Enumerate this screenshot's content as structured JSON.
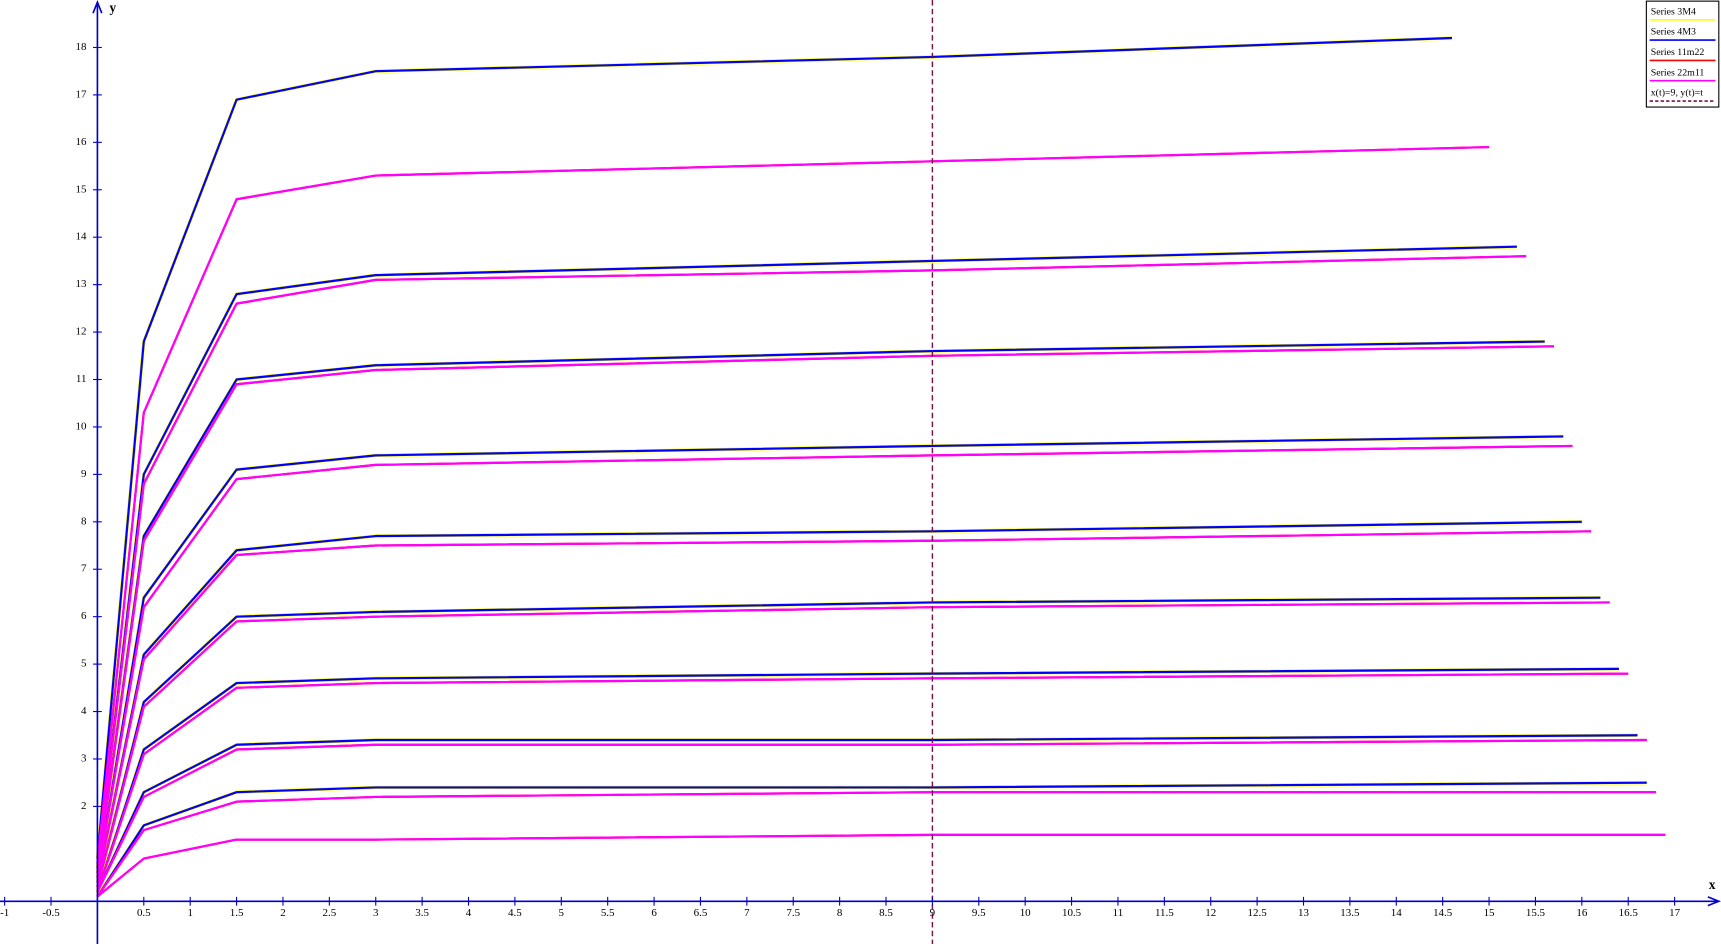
{
  "chart_data": {
    "type": "line",
    "xlabel": "x",
    "ylabel": "y",
    "xlim": [
      -1.05,
      17.5
    ],
    "ylim": [
      -0.9,
      19
    ],
    "xticks": [
      -1,
      -0.5,
      0.5,
      1,
      1.5,
      2,
      2.5,
      3,
      3.5,
      4,
      4.5,
      5,
      5.5,
      6,
      6.5,
      7,
      7.5,
      8,
      8.5,
      9,
      9.5,
      10,
      10.5,
      11,
      11.5,
      12,
      12.5,
      13,
      13.5,
      14,
      14.5,
      15,
      15.5,
      16,
      16.5,
      17
    ],
    "yticks": [
      2,
      3,
      4,
      5,
      6,
      7,
      8,
      9,
      10,
      11,
      12,
      13,
      14,
      15,
      16,
      17,
      18
    ],
    "legend": "upper right",
    "series": [
      {
        "name": "Series 3M4",
        "color": "#ffff00",
        "curves": [
          {
            "x": [
              0,
              0.5,
              1.5,
              3,
              9,
              14.6
            ],
            "y": [
              0.9,
              11.8,
              16.9,
              17.5,
              17.8,
              18.2
            ]
          },
          {
            "x": [
              0,
              0.5,
              1.5,
              3,
              9,
              15.3
            ],
            "y": [
              0.7,
              9.0,
              12.8,
              13.2,
              13.5,
              13.8
            ]
          },
          {
            "x": [
              0,
              0.5,
              1.5,
              3,
              9,
              15.6
            ],
            "y": [
              0.6,
              7.7,
              11.0,
              11.3,
              11.6,
              11.8
            ]
          },
          {
            "x": [
              0,
              0.5,
              1.5,
              3,
              9,
              15.8
            ],
            "y": [
              0.5,
              6.4,
              9.1,
              9.4,
              9.6,
              9.8
            ]
          },
          {
            "x": [
              0,
              0.5,
              1.5,
              3,
              9,
              16.0
            ],
            "y": [
              0.4,
              5.2,
              7.4,
              7.7,
              7.8,
              8.0
            ]
          },
          {
            "x": [
              0,
              0.5,
              1.5,
              3,
              9,
              16.2
            ],
            "y": [
              0.3,
              4.2,
              6.0,
              6.1,
              6.3,
              6.4
            ]
          },
          {
            "x": [
              0,
              0.5,
              1.5,
              3,
              9,
              16.4
            ],
            "y": [
              0.2,
              3.2,
              4.6,
              4.7,
              4.8,
              4.9
            ]
          },
          {
            "x": [
              0,
              0.5,
              1.5,
              3,
              9,
              16.6
            ],
            "y": [
              0.2,
              2.3,
              3.3,
              3.4,
              3.4,
              3.5
            ]
          },
          {
            "x": [
              0,
              0.5,
              1.5,
              3,
              9,
              16.7
            ],
            "y": [
              0.1,
              1.6,
              2.3,
              2.4,
              2.4,
              2.5
            ]
          }
        ]
      },
      {
        "name": "Series 4M3",
        "color": "#0000ff",
        "curves": [
          {
            "x": [
              0,
              0.5,
              1.5,
              3,
              9,
              14.6
            ],
            "y": [
              0.9,
              11.8,
              16.9,
              17.5,
              17.8,
              18.2
            ]
          },
          {
            "x": [
              0,
              0.5,
              1.5,
              3,
              9,
              15.3
            ],
            "y": [
              0.7,
              9.0,
              12.8,
              13.2,
              13.5,
              13.8
            ]
          },
          {
            "x": [
              0,
              0.5,
              1.5,
              3,
              9,
              15.6
            ],
            "y": [
              0.6,
              7.7,
              11.0,
              11.3,
              11.6,
              11.8
            ]
          },
          {
            "x": [
              0,
              0.5,
              1.5,
              3,
              9,
              15.8
            ],
            "y": [
              0.5,
              6.4,
              9.1,
              9.4,
              9.6,
              9.8
            ]
          },
          {
            "x": [
              0,
              0.5,
              1.5,
              3,
              9,
              16.0
            ],
            "y": [
              0.4,
              5.2,
              7.4,
              7.7,
              7.8,
              8.0
            ]
          },
          {
            "x": [
              0,
              0.5,
              1.5,
              3,
              9,
              16.2
            ],
            "y": [
              0.3,
              4.2,
              6.0,
              6.1,
              6.3,
              6.4
            ]
          },
          {
            "x": [
              0,
              0.5,
              1.5,
              3,
              9,
              16.4
            ],
            "y": [
              0.2,
              3.2,
              4.6,
              4.7,
              4.8,
              4.9
            ]
          },
          {
            "x": [
              0,
              0.5,
              1.5,
              3,
              9,
              16.6
            ],
            "y": [
              0.2,
              2.3,
              3.3,
              3.4,
              3.4,
              3.5
            ]
          },
          {
            "x": [
              0,
              0.5,
              1.5,
              3,
              9,
              16.7
            ],
            "y": [
              0.1,
              1.6,
              2.3,
              2.4,
              2.4,
              2.5
            ]
          }
        ]
      },
      {
        "name": "Series 11m22",
        "color": "#ff0000",
        "curves": [
          {
            "x": [
              0,
              0.5,
              1.5,
              3,
              9,
              15.0
            ],
            "y": [
              0.8,
              10.3,
              14.8,
              15.3,
              15.6,
              15.9
            ]
          },
          {
            "x": [
              0,
              0.5,
              1.5,
              3,
              9,
              15.4
            ],
            "y": [
              0.7,
              8.8,
              12.6,
              13.1,
              13.3,
              13.6
            ]
          },
          {
            "x": [
              0,
              0.5,
              1.5,
              3,
              9,
              15.7
            ],
            "y": [
              0.6,
              7.6,
              10.9,
              11.2,
              11.5,
              11.7
            ]
          },
          {
            "x": [
              0,
              0.5,
              1.5,
              3,
              9,
              15.9
            ],
            "y": [
              0.5,
              6.2,
              8.9,
              9.2,
              9.4,
              9.6
            ]
          },
          {
            "x": [
              0,
              0.5,
              1.5,
              3,
              9,
              16.1
            ],
            "y": [
              0.4,
              5.1,
              7.3,
              7.5,
              7.6,
              7.8
            ]
          },
          {
            "x": [
              0,
              0.5,
              1.5,
              3,
              9,
              16.3
            ],
            "y": [
              0.3,
              4.1,
              5.9,
              6.0,
              6.2,
              6.3
            ]
          },
          {
            "x": [
              0,
              0.5,
              1.5,
              3,
              9,
              16.5
            ],
            "y": [
              0.2,
              3.1,
              4.5,
              4.6,
              4.7,
              4.8
            ]
          },
          {
            "x": [
              0,
              0.5,
              1.5,
              3,
              9,
              16.7
            ],
            "y": [
              0.2,
              2.2,
              3.2,
              3.3,
              3.3,
              3.4
            ]
          },
          {
            "x": [
              0,
              0.5,
              1.5,
              3,
              9,
              16.8
            ],
            "y": [
              0.1,
              1.5,
              2.1,
              2.2,
              2.3,
              2.3
            ]
          },
          {
            "x": [
              0,
              0.5,
              1.5,
              3,
              9,
              16.9
            ],
            "y": [
              0.1,
              0.9,
              1.3,
              1.3,
              1.4,
              1.4
            ]
          }
        ]
      },
      {
        "name": "Series 22m11",
        "color": "#ff00ff",
        "curves": [
          {
            "x": [
              0,
              0.5,
              1.5,
              3,
              9,
              15.0
            ],
            "y": [
              0.8,
              10.3,
              14.8,
              15.3,
              15.6,
              15.9
            ]
          },
          {
            "x": [
              0,
              0.5,
              1.5,
              3,
              9,
              15.4
            ],
            "y": [
              0.7,
              8.8,
              12.6,
              13.1,
              13.3,
              13.6
            ]
          },
          {
            "x": [
              0,
              0.5,
              1.5,
              3,
              9,
              15.7
            ],
            "y": [
              0.6,
              7.6,
              10.9,
              11.2,
              11.5,
              11.7
            ]
          },
          {
            "x": [
              0,
              0.5,
              1.5,
              3,
              9,
              15.9
            ],
            "y": [
              0.5,
              6.2,
              8.9,
              9.2,
              9.4,
              9.6
            ]
          },
          {
            "x": [
              0,
              0.5,
              1.5,
              3,
              9,
              16.1
            ],
            "y": [
              0.4,
              5.1,
              7.3,
              7.5,
              7.6,
              7.8
            ]
          },
          {
            "x": [
              0,
              0.5,
              1.5,
              3,
              9,
              16.3
            ],
            "y": [
              0.3,
              4.1,
              5.9,
              6.0,
              6.2,
              6.3
            ]
          },
          {
            "x": [
              0,
              0.5,
              1.5,
              3,
              9,
              16.5
            ],
            "y": [
              0.2,
              3.1,
              4.5,
              4.6,
              4.7,
              4.8
            ]
          },
          {
            "x": [
              0,
              0.5,
              1.5,
              3,
              9,
              16.7
            ],
            "y": [
              0.2,
              2.2,
              3.2,
              3.3,
              3.3,
              3.4
            ]
          },
          {
            "x": [
              0,
              0.5,
              1.5,
              3,
              9,
              16.8
            ],
            "y": [
              0.1,
              1.5,
              2.1,
              2.2,
              2.3,
              2.3
            ]
          },
          {
            "x": [
              0,
              0.5,
              1.5,
              3,
              9,
              16.9
            ],
            "y": [
              0.1,
              0.9,
              1.3,
              1.3,
              1.4,
              1.4
            ]
          }
        ]
      }
    ],
    "vline": {
      "name": "x(t)=9, y(t)=t",
      "color": "#7b0f4b",
      "x": 9
    }
  }
}
